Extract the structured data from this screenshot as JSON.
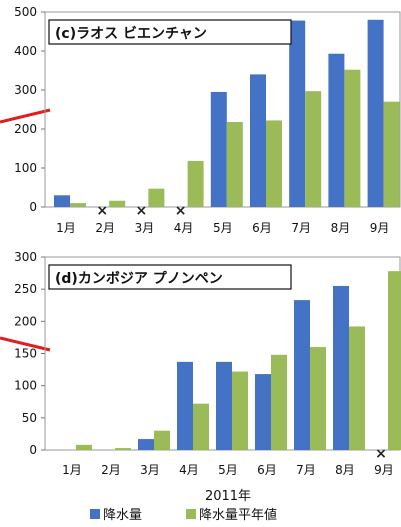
{
  "figure": {
    "xlabel": "2011年",
    "legend": [
      {
        "name": "降水量",
        "color": "#4472C4"
      },
      {
        "name": "降水量平年値",
        "color": "#9BBB59"
      }
    ],
    "missing_marker": "×"
  },
  "chart_data": [
    {
      "type": "bar",
      "title": "(c)ラオス ビエンチャン",
      "categories": [
        "1月",
        "2月",
        "3月",
        "4月",
        "5月",
        "6月",
        "7月",
        "8月",
        "9月"
      ],
      "yticks": [
        "0",
        "100",
        "200",
        "300",
        "400",
        "500"
      ],
      "ylim": [
        0,
        500
      ],
      "series": [
        {
          "name": "降水量",
          "color": "#4472C4",
          "values": [
            30,
            null,
            null,
            null,
            295,
            340,
            478,
            393,
            480
          ]
        },
        {
          "name": "降水量平年値",
          "color": "#9BBB59",
          "values": [
            10,
            16,
            47,
            118,
            218,
            222,
            297,
            352,
            270
          ]
        }
      ],
      "missing": [
        "2月",
        "3月",
        "4月"
      ],
      "grid": false,
      "legend": "bottom"
    },
    {
      "type": "bar",
      "title": "(d)カンボジア プノンペン",
      "categories": [
        "1月",
        "2月",
        "3月",
        "4月",
        "5月",
        "6月",
        "7月",
        "8月",
        "9月"
      ],
      "yticks": [
        "0",
        "50",
        "100",
        "150",
        "200",
        "250",
        "300"
      ],
      "ylim": [
        0,
        300
      ],
      "series": [
        {
          "name": "降水量",
          "color": "#4472C4",
          "values": [
            0,
            0,
            17,
            137,
            137,
            118,
            233,
            255,
            null
          ]
        },
        {
          "name": "降水量平年値",
          "color": "#9BBB59",
          "values": [
            8,
            3,
            30,
            72,
            122,
            148,
            160,
            192,
            278
          ]
        }
      ],
      "missing": [
        "9月"
      ],
      "grid": false,
      "legend": "bottom"
    }
  ]
}
